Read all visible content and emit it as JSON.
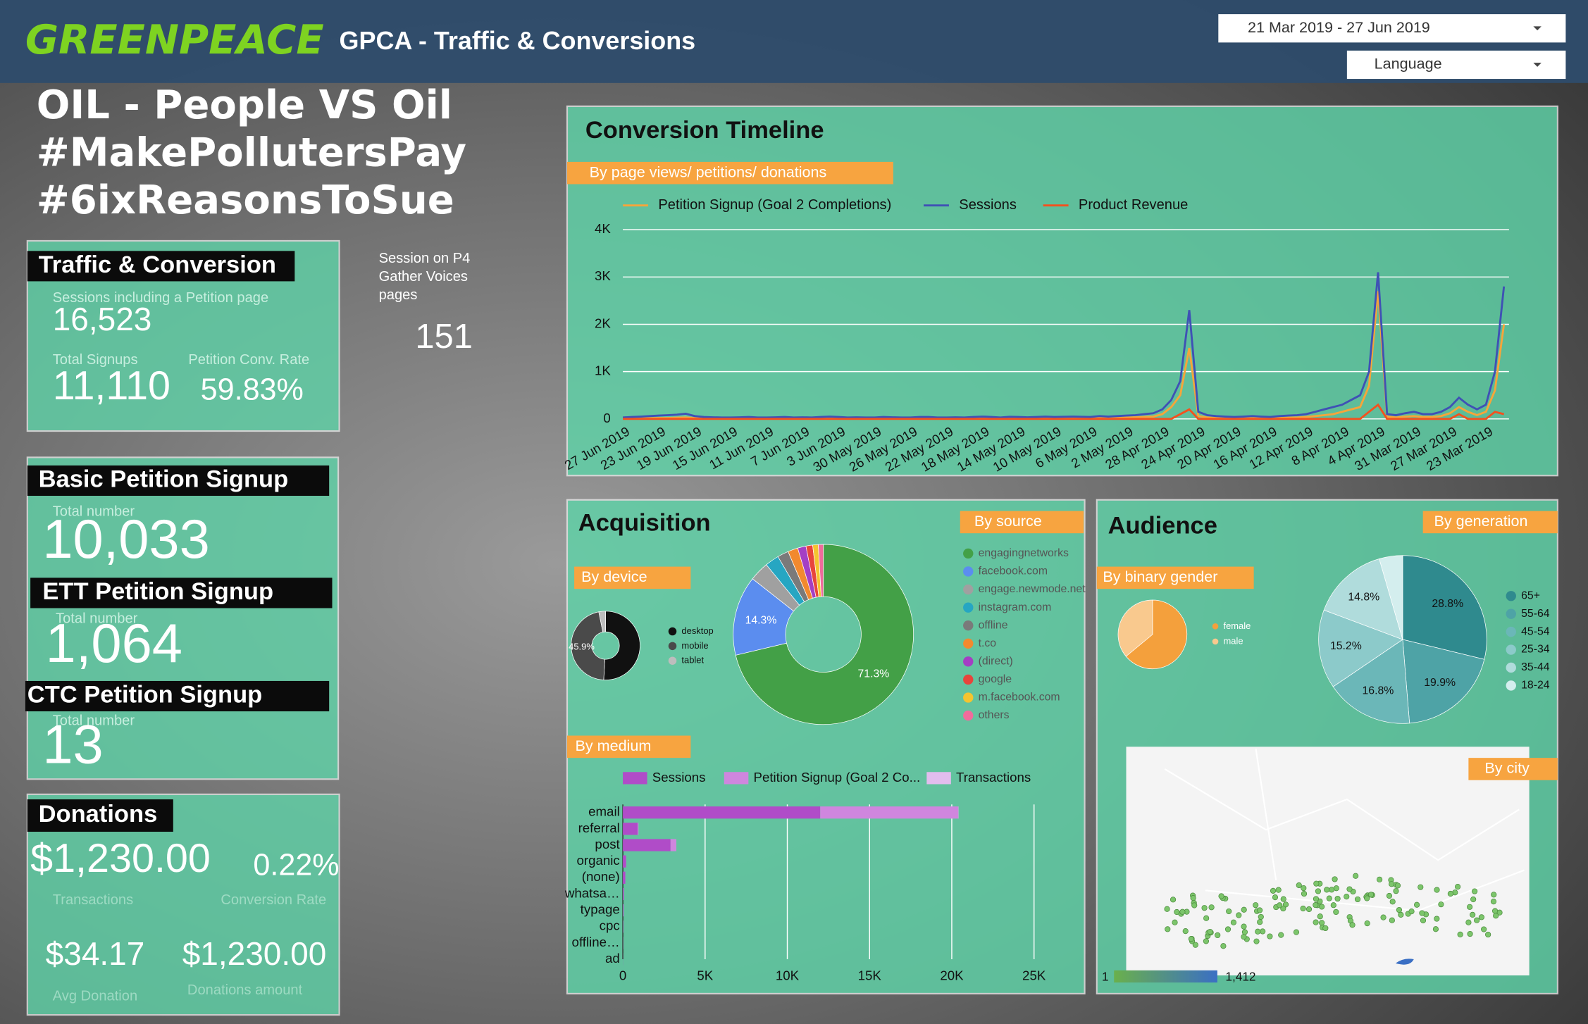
{
  "header": {
    "logo": "GREENPEACE",
    "title": "GPCA - Traffic & Conversions",
    "date_range": "21 Mar 2019 - 27 Jun 2019",
    "language": "Language"
  },
  "page_title": [
    "OIL - People VS Oil",
    "#MakePollutersPay",
    "#6ixReasonsToSue"
  ],
  "traffic": {
    "title": "Traffic & Conversion",
    "sessions_label": "Sessions including a Petition page",
    "sessions": "16,523",
    "signups_label": "Total Signups",
    "signups": "11,110",
    "rate_label": "Petition Conv. Rate",
    "rate": "59.83%"
  },
  "p4": {
    "label": [
      "Session on P4",
      "Gather Voices",
      "pages"
    ],
    "value": "151"
  },
  "basic": {
    "title": "Basic Petition Signup",
    "label": "Total number",
    "value": "10,033"
  },
  "ett": {
    "title": "ETT Petition Signup",
    "label": "Total number",
    "value": "1,064"
  },
  "ctc": {
    "title": "CTC Petition Signup",
    "label": "Total number",
    "value": "13"
  },
  "donations": {
    "title": "Donations",
    "amount": "$1,230.00",
    "rate": "0.22%",
    "transactions_label": "Transactions",
    "rate_label": "Conversion Rate",
    "avg": "$34.17",
    "avg_label": "Avg Donation",
    "total": "$1,230.00",
    "total_label": "Donations amount"
  },
  "panels": {
    "acquisition": "Acquisition",
    "audience": "Audience"
  },
  "map": {
    "title": "By city",
    "scale_min": 1,
    "scale_max": {
      "value": 1412,
      "label": "1,412"
    }
  },
  "chart_data": [
    {
      "type": "line",
      "title": "Conversion Timeline",
      "subtitle": "By page views/ petitions/ donations",
      "categories": [
        "27 Jun 2019",
        null,
        null,
        null,
        "23 Jun 2019",
        null,
        null,
        null,
        "19 Jun 2019",
        null,
        null,
        null,
        "15 Jun 2019",
        null,
        null,
        null,
        "11 Jun 2019",
        null,
        null,
        null,
        "7 Jun 2019",
        null,
        null,
        null,
        "3 Jun 2019",
        null,
        null,
        null,
        "30 May 2019",
        null,
        null,
        null,
        "26 May 2019",
        null,
        null,
        null,
        "22 May 2019",
        null,
        null,
        null,
        "18 May 2019",
        null,
        null,
        null,
        "14 May 2019",
        null,
        null,
        null,
        "10 May 2019",
        null,
        null,
        null,
        "6 May 2019",
        null,
        null,
        null,
        "2 May 2019",
        null,
        null,
        null,
        "28 Apr 2019",
        null,
        null,
        null,
        "24 Apr 2019",
        null,
        null,
        null,
        "20 Apr 2019",
        null,
        null,
        null,
        "16 Apr 2019",
        null,
        null,
        null,
        "12 Apr 2019",
        null,
        null,
        null,
        "8 Apr 2019",
        null,
        null,
        null,
        "4 Apr 2019",
        null,
        null,
        null,
        "31 Mar 2019",
        null,
        null,
        null,
        "27 Mar 2019",
        null,
        null,
        null,
        "23 Mar 2019",
        null,
        null
      ],
      "series": [
        {
          "name": "Petition Signup (Goal 2 Completions)",
          "color": "#f6a53a",
          "values": [
            10,
            10,
            15,
            15,
            20,
            20,
            25,
            30,
            20,
            15,
            15,
            15,
            15,
            15,
            15,
            15,
            15,
            15,
            15,
            15,
            15,
            15,
            15,
            20,
            15,
            15,
            15,
            15,
            15,
            15,
            15,
            15,
            15,
            15,
            15,
            15,
            15,
            15,
            15,
            15,
            20,
            15,
            15,
            20,
            15,
            15,
            15,
            20,
            15,
            20,
            20,
            20,
            15,
            25,
            20,
            25,
            30,
            35,
            40,
            50,
            100,
            250,
            500,
            1500,
            60,
            30,
            20,
            20,
            15,
            20,
            20,
            20,
            15,
            20,
            25,
            30,
            40,
            60,
            80,
            100,
            150,
            200,
            250,
            700,
            2700,
            50,
            30,
            50,
            60,
            40,
            40,
            60,
            120,
            250,
            150,
            80,
            150,
            600,
            2000
          ]
        },
        {
          "name": "Sessions",
          "color": "#3f51b5",
          "values": [
            30,
            40,
            50,
            60,
            70,
            80,
            90,
            110,
            60,
            40,
            35,
            30,
            30,
            35,
            40,
            30,
            30,
            35,
            40,
            30,
            35,
            30,
            40,
            50,
            40,
            30,
            35,
            30,
            30,
            40,
            35,
            30,
            30,
            40,
            40,
            30,
            30,
            35,
            30,
            40,
            50,
            40,
            30,
            45,
            40,
            35,
            40,
            50,
            40,
            45,
            50,
            45,
            40,
            60,
            50,
            60,
            70,
            80,
            100,
            120,
            200,
            400,
            800,
            2300,
            150,
            80,
            60,
            50,
            40,
            50,
            60,
            50,
            40,
            60,
            70,
            80,
            100,
            150,
            200,
            250,
            300,
            400,
            500,
            1000,
            3100,
            100,
            80,
            120,
            150,
            100,
            100,
            150,
            250,
            450,
            300,
            200,
            300,
            1000,
            2800
          ]
        },
        {
          "name": "Product Revenue",
          "color": "#f4511e",
          "values": [
            0,
            0,
            0,
            0,
            0,
            0,
            0,
            0,
            0,
            0,
            0,
            0,
            0,
            0,
            0,
            0,
            0,
            0,
            0,
            0,
            0,
            0,
            0,
            0,
            0,
            0,
            0,
            0,
            0,
            0,
            0,
            0,
            0,
            0,
            0,
            0,
            0,
            0,
            0,
            0,
            0,
            0,
            0,
            0,
            0,
            0,
            0,
            0,
            0,
            0,
            0,
            0,
            0,
            0,
            0,
            0,
            0,
            0,
            0,
            0,
            0,
            0,
            100,
            200,
            0,
            0,
            0,
            0,
            0,
            0,
            0,
            0,
            0,
            0,
            0,
            0,
            0,
            0,
            0,
            0,
            0,
            0,
            0,
            150,
            300,
            0,
            0,
            0,
            0,
            0,
            0,
            0,
            0,
            100,
            0,
            0,
            0,
            150,
            100
          ]
        }
      ],
      "ylim": [
        0,
        4000
      ],
      "yticks": [
        0,
        {
          "value": 1000,
          "label": "1K"
        },
        {
          "value": 2000,
          "label": "2K"
        },
        {
          "value": 3000,
          "label": "3K"
        },
        {
          "value": 4000,
          "label": "4K"
        }
      ],
      "grid": true
    },
    {
      "type": "pie",
      "title": "By device",
      "categories": [
        "desktop",
        "mobile",
        "tablet"
      ],
      "values": [
        50.9,
        45.9,
        3.2
      ],
      "value_labels": [
        null,
        "45.9%",
        null
      ],
      "colors": [
        "#111111",
        "#4a4a4a",
        "#bdbdbd"
      ],
      "donut": true
    },
    {
      "type": "pie",
      "title": "By source",
      "categories": [
        "engagingnetworks",
        "facebook.com",
        "engage.newmode.net",
        "instagram.com",
        "offline",
        "t.co",
        "(direct)",
        "google",
        "m.facebook.com",
        "others"
      ],
      "values": [
        71.3,
        14.3,
        3.5,
        2.5,
        2,
        1.8,
        1.5,
        1.2,
        1,
        0.9
      ],
      "value_labels": [
        "71.3%",
        "14.3%",
        null,
        null,
        null,
        null,
        null,
        null,
        null,
        null
      ],
      "colors": [
        "#43a047",
        "#5b8def",
        "#a0a0a0",
        "#26a6c2",
        "#7a7a7a",
        "#f2892e",
        "#a43fc4",
        "#e8453c",
        "#f4c430",
        "#f06b9c"
      ],
      "donut": true
    },
    {
      "type": "pie",
      "title": "By binary gender",
      "categories": [
        "female",
        "male"
      ],
      "values": [
        64,
        36
      ],
      "colors": [
        "#f4a03c",
        "#f9c98e"
      ],
      "donut": false
    },
    {
      "type": "pie",
      "title": "By generation",
      "categories": [
        "65+",
        "55-64",
        "45-54",
        "25-34",
        "35-44",
        "18-24"
      ],
      "values": [
        28.8,
        19.9,
        16.8,
        15.2,
        14.8,
        4.5
      ],
      "value_labels": [
        "28.8%",
        "19.9%",
        "16.8%",
        "15.2%",
        "14.8%",
        null
      ],
      "colors": [
        "#2f8a8e",
        "#4ea3a6",
        "#6bb7b8",
        "#8ccaca",
        "#b0dcdc",
        "#d4eeee"
      ],
      "donut": false
    },
    {
      "type": "bar",
      "orientation": "horizontal",
      "stacked": true,
      "title": "By medium",
      "categories": [
        "email",
        "referral",
        "post",
        "organic",
        "(none)",
        "whatsa…",
        "typage",
        "cpc",
        "offline…",
        "ad"
      ],
      "series": [
        {
          "name": "Sessions",
          "color": "#b04cc8",
          "values": [
            12000,
            900,
            2900,
            200,
            150,
            60,
            40,
            20,
            10,
            5
          ]
        },
        {
          "name": "Petition Signup (Goal 2 Co...",
          "color": "#cf86de",
          "values": [
            8400,
            50,
            350,
            10,
            5,
            0,
            0,
            0,
            0,
            0
          ]
        },
        {
          "name": "Transactions",
          "color": "#e2bdee",
          "values": [
            15,
            0,
            2,
            0,
            0,
            0,
            0,
            0,
            0,
            0
          ]
        }
      ],
      "xlim": [
        0,
        25000
      ],
      "xticks": [
        0,
        {
          "value": 5000,
          "label": "5K"
        },
        {
          "value": 10000,
          "label": "10K"
        },
        {
          "value": 15000,
          "label": "15K"
        },
        {
          "value": 20000,
          "label": "20K"
        },
        {
          "value": 25000,
          "label": "25K"
        }
      ],
      "grid": true
    }
  ]
}
